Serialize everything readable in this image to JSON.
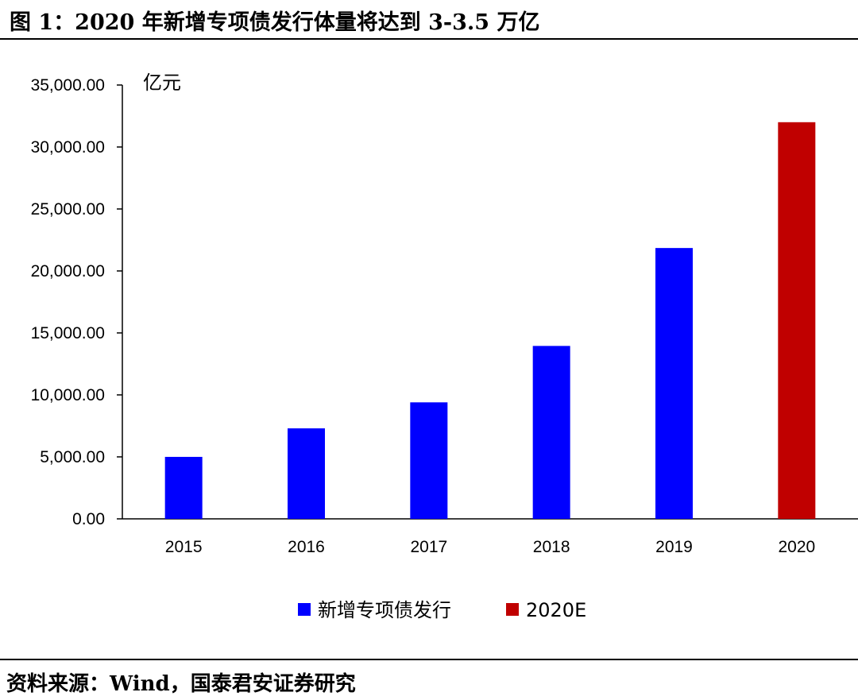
{
  "title": "图 1：2020 年新增专项债发行体量将达到 3-3.5 万亿",
  "source": "资料来源：Wind，国泰君安证券研究",
  "chart_data": {
    "type": "bar",
    "categories": [
      "2015",
      "2016",
      "2017",
      "2018",
      "2019",
      "2020"
    ],
    "series": [
      {
        "name": "新增专项债发行",
        "color": "#0000ff",
        "values": [
          5000,
          7300,
          9400,
          13950,
          21850,
          null
        ]
      },
      {
        "name": "2020E",
        "color": "#c00000",
        "values": [
          null,
          null,
          null,
          null,
          null,
          32000
        ]
      }
    ],
    "ylabel": "亿元",
    "ylim": [
      0,
      35000
    ],
    "yticks": [
      0,
      5000,
      10000,
      15000,
      20000,
      25000,
      30000,
      35000
    ],
    "ytick_labels": [
      "0.00",
      "5,000.00",
      "10,000.00",
      "15,000.00",
      "20,000.00",
      "25,000.00",
      "30,000.00",
      "35,000.00"
    ],
    "grid": false,
    "legend_position": "bottom"
  }
}
